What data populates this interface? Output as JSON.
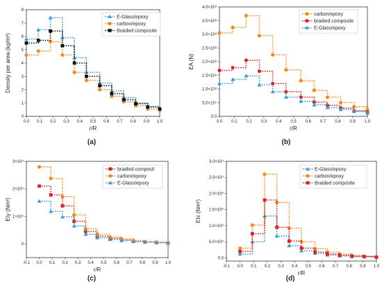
{
  "chart_data": [
    {
      "type": "line",
      "panel_label": "(a)",
      "xlabel": "r/R",
      "ylabel": "Density per area (kg/m²)",
      "xlim": [
        0.0,
        1.0
      ],
      "ylim": [
        0,
        8
      ],
      "xticks": [
        "0.0",
        "0.1",
        "0.2",
        "0.3",
        "0.4",
        "0.5",
        "0.6",
        "0.7",
        "0.8",
        "0.9",
        "1.0"
      ],
      "yticks": [
        "0",
        "1",
        "2",
        "3",
        "4",
        "5",
        "6",
        "7",
        "8"
      ],
      "legend_position": "top-right",
      "series": [
        {
          "name": "E-Glass/epoxy",
          "color": "#3a9ad9",
          "marker": "triangle",
          "x": [
            0.0,
            0.09,
            0.18,
            0.27,
            0.36,
            0.45,
            0.55,
            0.64,
            0.73,
            0.82,
            0.91,
            1.0
          ],
          "y": [
            5.8,
            6.5,
            7.4,
            5.9,
            4.4,
            3.3,
            2.5,
            1.9,
            1.4,
            1.0,
            0.75,
            0.6
          ]
        },
        {
          "name": "carbon/epoxy",
          "color": "#f28c1c",
          "marker": "circle",
          "x": [
            0.0,
            0.09,
            0.18,
            0.27,
            0.36,
            0.45,
            0.55,
            0.64,
            0.73,
            0.82,
            0.91,
            1.0
          ],
          "y": [
            4.6,
            4.9,
            5.6,
            4.6,
            3.3,
            2.7,
            2.0,
            1.5,
            1.1,
            0.8,
            0.55,
            0.45
          ]
        },
        {
          "name": "Braided composite",
          "color": "#111111",
          "marker": "square",
          "x": [
            0.0,
            0.09,
            0.18,
            0.27,
            0.36,
            0.45,
            0.55,
            0.64,
            0.73,
            0.82,
            0.91,
            1.0
          ],
          "y": [
            5.5,
            5.7,
            6.4,
            5.3,
            4.0,
            3.0,
            2.3,
            1.7,
            1.25,
            0.95,
            0.7,
            0.55
          ]
        }
      ]
    },
    {
      "type": "line",
      "panel_label": "(b)",
      "xlabel": "r/R",
      "ylabel": "EA (N)",
      "xlim": [
        0.0,
        1.0
      ],
      "ylim": [
        0,
        400000000.0
      ],
      "xticks": [
        "0.0",
        "0.1",
        "0.2",
        "0.3",
        "0.4",
        "0.5",
        "0.6",
        "0.7",
        "0.8",
        "0.9",
        "1.0"
      ],
      "yticks": [
        "0.0",
        "5.0×10⁷",
        "1.0×10⁸",
        "1.5×10⁸",
        "2.0×10⁸",
        "2.5×10⁸",
        "3.0×10⁸",
        "3.5×10⁸",
        "4.0×10⁸"
      ],
      "legend_position": "top-right",
      "series": [
        {
          "name": "carbon/epoxy",
          "color": "#f28c1c",
          "marker": "circle",
          "x": [
            0.0,
            0.09,
            0.18,
            0.27,
            0.36,
            0.45,
            0.55,
            0.64,
            0.73,
            0.82,
            0.91,
            1.0
          ],
          "y": [
            305000000.0,
            325000000.0,
            368000000.0,
            295000000.0,
            225000000.0,
            170000000.0,
            130000000.0,
            95000000.0,
            70000000.0,
            50000000.0,
            35000000.0,
            25000000.0
          ]
        },
        {
          "name": "braided composite",
          "color": "#e02020",
          "marker": "circle",
          "x": [
            0.0,
            0.09,
            0.18,
            0.27,
            0.36,
            0.45,
            0.55,
            0.64,
            0.73,
            0.82,
            0.91,
            1.0
          ],
          "y": [
            168000000.0,
            178000000.0,
            205000000.0,
            165000000.0,
            120000000.0,
            90000000.0,
            70000000.0,
            52000000.0,
            40000000.0,
            30000000.0,
            20000000.0,
            15000000.0
          ]
        },
        {
          "name": "E-Glass/epoxy",
          "color": "#3a9ad9",
          "marker": "triangle",
          "x": [
            0.0,
            0.09,
            0.18,
            0.27,
            0.36,
            0.45,
            0.55,
            0.64,
            0.73,
            0.82,
            0.91,
            1.0
          ],
          "y": [
            120000000.0,
            135000000.0,
            148000000.0,
            115000000.0,
            90000000.0,
            70000000.0,
            55000000.0,
            42000000.0,
            32000000.0,
            25000000.0,
            18000000.0,
            12000000.0
          ]
        }
      ]
    },
    {
      "type": "line",
      "panel_label": "(c)",
      "xlabel": "r/R",
      "ylabel": "EIy (Nm²)",
      "xlim": [
        -0.1,
        1.0
      ],
      "ylim": [
        -50000.0,
        300000.0
      ],
      "xticks": [
        "-0.1",
        "0.0",
        "0.1",
        "0.2",
        "0.3",
        "0.4",
        "0.5",
        "0.6",
        "0.7",
        "0.8",
        "0.9",
        "1.0"
      ],
      "yticks": [
        "0",
        "1×10⁵",
        "2×10⁵",
        "3×10⁵"
      ],
      "legend_position": "top-right",
      "series": [
        {
          "name": "braided composit",
          "color": "#e02020",
          "marker": "square",
          "x": [
            0.0,
            0.09,
            0.18,
            0.27,
            0.36,
            0.45,
            0.55,
            0.64,
            0.73,
            0.82,
            0.91,
            1.0
          ],
          "y": [
            210000.0,
            178000.0,
            138000.0,
            82000.0,
            45000.0,
            28000.0,
            20000.0,
            14000.0,
            10000.0,
            7000.0,
            5000.0,
            3000.0
          ]
        },
        {
          "name": "carbon/epoxy",
          "color": "#f28c1c",
          "marker": "circle",
          "x": [
            0.0,
            0.09,
            0.18,
            0.27,
            0.36,
            0.45,
            0.55,
            0.64,
            0.73,
            0.82,
            0.91,
            1.0
          ],
          "y": [
            280000.0,
            238000.0,
            172000.0,
            105000.0,
            55000.0,
            35000.0,
            25000.0,
            18000.0,
            12000.0,
            8000.0,
            6000.0,
            4000.0
          ]
        },
        {
          "name": "E-Glass/epoxy",
          "color": "#3a9ad9",
          "marker": "triangle",
          "x": [
            0.0,
            0.09,
            0.18,
            0.27,
            0.36,
            0.45,
            0.55,
            0.64,
            0.73,
            0.82,
            0.91,
            1.0
          ],
          "y": [
            155000.0,
            118000.0,
            98000.0,
            65000.0,
            35000.0,
            22000.0,
            16000.0,
            12000.0,
            8000.0,
            6000.0,
            4000.0,
            2000.0
          ]
        }
      ]
    },
    {
      "type": "line",
      "panel_label": "(d)",
      "xlabel": "r/R",
      "ylabel": "EIx (Nm²)",
      "xlim": [
        -0.1,
        1.0
      ],
      "ylim": [
        -100000.0,
        3000000.0
      ],
      "xticks": [
        "-0.1",
        "0.0",
        "0.1",
        "0.2",
        "0.3",
        "0.4",
        "0.5",
        "0.6",
        "0.7",
        "0.8",
        "0.9",
        "1.0"
      ],
      "yticks": [
        "0.0",
        "5.0×10⁵",
        "1.0×10⁶",
        "1.5×10⁶",
        "2.0×10⁶",
        "2.5×10⁶",
        "3.0×10⁶"
      ],
      "legend_position": "top-right",
      "series": [
        {
          "name": "E-Glass/epoxy",
          "color": "#3a9ad9",
          "marker": "triangle",
          "x": [
            0.0,
            0.09,
            0.18,
            0.27,
            0.36,
            0.45,
            0.55,
            0.64,
            0.73,
            0.82,
            0.91,
            1.0
          ],
          "y": [
            120000.0,
            500000.0,
            1300000.0,
            680000.0,
            380000.0,
            220000.0,
            140000.0,
            90000.0,
            60000.0,
            40000.0,
            30000.0,
            20000.0
          ]
        },
        {
          "name": "carbon/epoxy",
          "color": "#f28c1c",
          "marker": "circle",
          "x": [
            0.0,
            0.09,
            0.18,
            0.27,
            0.36,
            0.45,
            0.55,
            0.64,
            0.73,
            0.82,
            0.91,
            1.0
          ],
          "y": [
            300000.0,
            1020000.0,
            2600000.0,
            1720000.0,
            920000.0,
            500000.0,
            280000.0,
            180000.0,
            120000.0,
            80000.0,
            50000.0,
            30000.0
          ]
        },
        {
          "name": "Braided composite",
          "color": "#e02020",
          "marker": "square",
          "x": [
            0.0,
            0.09,
            0.18,
            0.27,
            0.36,
            0.45,
            0.55,
            0.64,
            0.73,
            0.82,
            0.91,
            1.0
          ],
          "y": [
            200000.0,
            750000.0,
            1800000.0,
            950000.0,
            520000.0,
            300000.0,
            180000.0,
            120000.0,
            80000.0,
            50000.0,
            40000.0,
            20000.0
          ]
        }
      ]
    }
  ]
}
